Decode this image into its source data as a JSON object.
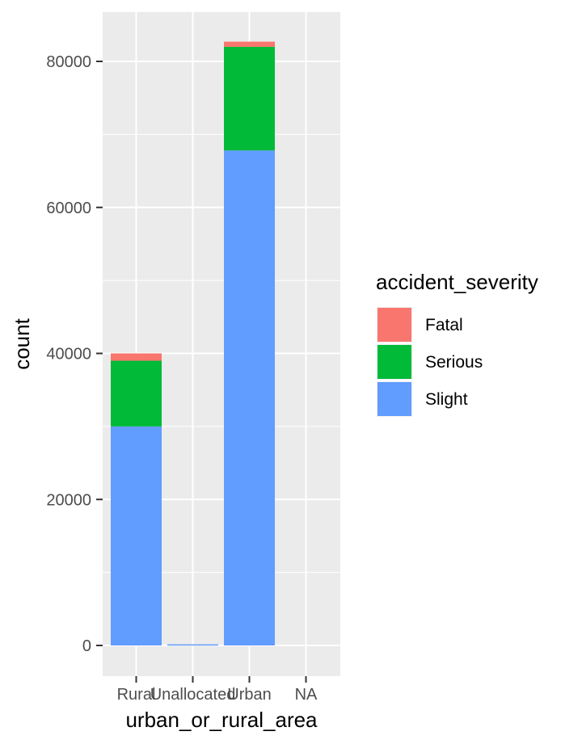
{
  "chart_data": {
    "type": "bar",
    "stacked": true,
    "categories": [
      "Rural",
      "Unallocated",
      "Urban",
      "NA"
    ],
    "series": [
      {
        "name": "Fatal",
        "color": "#F8766D",
        "values": [
          1000,
          0,
          700,
          0
        ]
      },
      {
        "name": "Serious",
        "color": "#00BA38",
        "values": [
          9000,
          0,
          14200,
          0
        ]
      },
      {
        "name": "Slight",
        "color": "#619CFF",
        "values": [
          30000,
          150,
          67800,
          0
        ]
      }
    ],
    "xlabel": "urban_or_rural_area",
    "ylabel": "count",
    "ylim": [
      0,
      86000
    ],
    "yticks": [
      0,
      20000,
      40000,
      60000,
      80000
    ],
    "ytick_labels": [
      "0",
      "20000",
      "40000",
      "60000",
      "80000"
    ],
    "legend": {
      "title": "accident_severity",
      "position": "right"
    },
    "grid": true,
    "panel_background": "#EBEBEB"
  }
}
